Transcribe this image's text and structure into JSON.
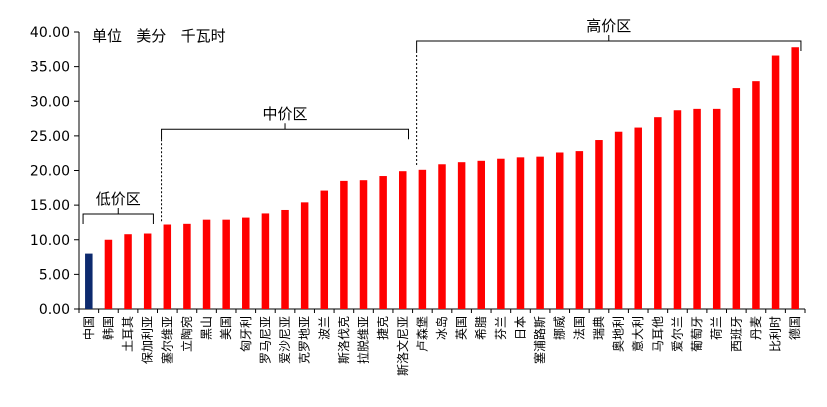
{
  "chart_data": {
    "type": "bar",
    "unit_note": "单位   美分   千瓦时",
    "ylim": [
      0,
      40
    ],
    "yticks": [
      "0.00",
      "5.00",
      "10.00",
      "15.00",
      "20.00",
      "25.00",
      "30.00",
      "35.00",
      "40.00"
    ],
    "grid": false,
    "colors": {
      "highlight": "#0d2a6e",
      "default": "#ff0000"
    },
    "highlight_index": 0,
    "categories": [
      "中国",
      "韩国",
      "土耳其",
      "保加利亚",
      "塞尔维亚",
      "立陶宛",
      "黑山",
      "美国",
      "匈牙利",
      "罗马尼亚",
      "爱沙尼亚",
      "克罗地亚",
      "波兰",
      "斯洛伐克",
      "拉脱维亚",
      "捷克",
      "斯洛文尼亚",
      "卢森堡",
      "冰岛",
      "英国",
      "希腊",
      "芬兰",
      "日本",
      "塞浦路斯",
      "挪威",
      "法国",
      "瑞典",
      "奥地利",
      "意大利",
      "马耳他",
      "爱尔兰",
      "葡萄牙",
      "荷兰",
      "西班牙",
      "丹麦",
      "比利时",
      "德国"
    ],
    "values": [
      8.0,
      10.0,
      10.8,
      10.9,
      12.2,
      12.3,
      12.9,
      12.9,
      13.2,
      13.8,
      14.3,
      15.4,
      17.1,
      18.5,
      18.6,
      19.2,
      19.9,
      20.1,
      20.9,
      21.2,
      21.4,
      21.7,
      21.9,
      22.0,
      22.6,
      22.8,
      24.4,
      25.6,
      26.2,
      27.7,
      28.7,
      28.9,
      28.9,
      31.9,
      32.9,
      36.6,
      37.8
    ],
    "zones": [
      {
        "label": "低价区",
        "start": 0,
        "end": 3
      },
      {
        "label": "中价区",
        "start": 4,
        "end": 16
      },
      {
        "label": "高价区",
        "start": 17,
        "end": 36
      }
    ]
  }
}
